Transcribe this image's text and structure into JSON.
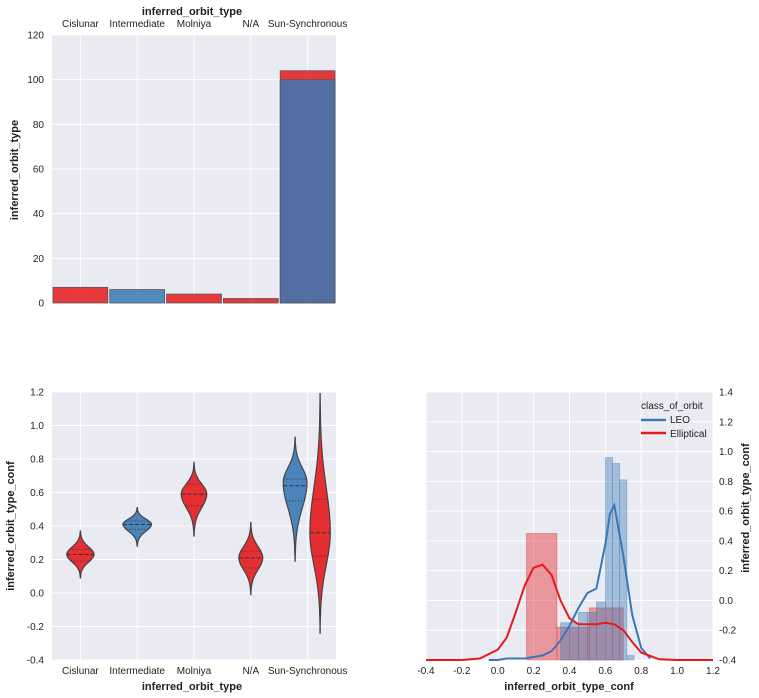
{
  "chart_data": [
    {
      "type": "bar",
      "title": "inferred_orbit_type",
      "ylabel": "inferred_orbit_type",
      "categories": [
        "Cislunar",
        "Intermediate",
        "Molniya",
        "N/A",
        "Sun-Synchronous"
      ],
      "ylim": [
        0,
        120
      ],
      "yticks": [
        "0",
        "20",
        "40",
        "60",
        "80",
        "100",
        "120"
      ],
      "series": [
        {
          "name": "LEO",
          "values": [
            0,
            6,
            0,
            0,
            100
          ]
        },
        {
          "name": "Elliptical",
          "values": [
            7,
            0,
            4,
            2,
            104
          ]
        }
      ]
    },
    {
      "type": "violin",
      "xlabel": "inferred_orbit_type",
      "ylabel": "inferred_orbit_type_conf",
      "categories": [
        "Cislunar",
        "Intermediate",
        "Molniya",
        "N/A",
        "Sun-Synchronous"
      ],
      "ylim": [
        -0.4,
        1.2
      ],
      "yticks": [
        "-0.4",
        "-0.2",
        "0.0",
        "0.2",
        "0.4",
        "0.6",
        "0.8",
        "1.0",
        "1.2"
      ],
      "violins": [
        {
          "category": "Cislunar",
          "series": "Elliptical",
          "min": 0.09,
          "max": 0.37,
          "q1": 0.19,
          "median": 0.23,
          "q3": 0.26,
          "peak": 0.23,
          "width": 0.48
        },
        {
          "category": "Intermediate",
          "series": "LEO",
          "min": 0.28,
          "max": 0.51,
          "q1": 0.38,
          "median": 0.41,
          "q3": 0.43,
          "peak": 0.41,
          "width": 0.5
        },
        {
          "category": "Molniya",
          "series": "Elliptical",
          "min": 0.34,
          "max": 0.78,
          "q1": 0.52,
          "median": 0.59,
          "q3": 0.65,
          "peak": 0.59,
          "width": 0.45
        },
        {
          "category": "N/A",
          "series": "Elliptical",
          "min": -0.01,
          "max": 0.42,
          "q1": 0.15,
          "median": 0.21,
          "q3": 0.25,
          "peak": 0.21,
          "width": 0.42
        },
        {
          "category": "Sun-Synchronous",
          "series": "LEO",
          "min": 0.19,
          "max": 0.93,
          "q1": 0.55,
          "median": 0.64,
          "q3": 0.68,
          "peak": 0.66,
          "width": 0.42,
          "side": -0.22
        },
        {
          "category": "Sun-Synchronous",
          "series": "Elliptical",
          "min": -0.24,
          "max": 1.19,
          "q1": 0.22,
          "median": 0.36,
          "q3": 0.56,
          "peak": 0.36,
          "width": 0.36,
          "side": 0.22
        }
      ]
    },
    {
      "type": "histogram+kde",
      "xlabel": "inferred_orbit_type_conf",
      "ylabel": "inferred_orbit_type_conf",
      "xlim": [
        -0.4,
        1.2
      ],
      "xticks": [
        "-0.4",
        "-0.2",
        "0.0",
        "0.2",
        "0.4",
        "0.6",
        "0.8",
        "1.0",
        "1.2"
      ],
      "ylim": [
        -0.4,
        1.4
      ],
      "yticks": [
        "-0.4",
        "-0.2",
        "0.0",
        "0.2",
        "0.4",
        "0.6",
        "0.8",
        "1.0",
        "1.2",
        "1.4"
      ],
      "legend_title": "class_of_orbit",
      "legend_position": "top-right",
      "series": [
        {
          "name": "LEO",
          "color": "#3a78b5",
          "bins": [
            {
              "x0": 0.35,
              "x1": 0.4,
              "value": -0.15
            },
            {
              "x0": 0.4,
              "x1": 0.45,
              "value": -0.15
            },
            {
              "x0": 0.45,
              "x1": 0.5,
              "value": -0.08
            },
            {
              "x0": 0.5,
              "x1": 0.55,
              "value": -0.08
            },
            {
              "x0": 0.55,
              "x1": 0.6,
              "value": -0.01
            },
            {
              "x0": 0.6,
              "x1": 0.64,
              "value": 0.96
            },
            {
              "x0": 0.64,
              "x1": 0.68,
              "value": 0.92
            },
            {
              "x0": 0.68,
              "x1": 0.72,
              "value": 0.81
            },
            {
              "x0": 0.72,
              "x1": 0.76,
              "value": -0.37
            }
          ],
          "kde": {
            "x": [
              -0.05,
              0.0,
              0.05,
              0.1,
              0.15,
              0.2,
              0.25,
              0.3,
              0.35,
              0.4,
              0.45,
              0.5,
              0.55,
              0.6,
              0.625,
              0.65,
              0.7,
              0.725,
              0.75,
              0.8,
              0.85
            ],
            "y": [
              -0.4,
              -0.4,
              -0.39,
              -0.39,
              -0.39,
              -0.38,
              -0.37,
              -0.34,
              -0.27,
              -0.17,
              -0.05,
              0.05,
              0.08,
              0.38,
              0.58,
              0.64,
              0.3,
              0.1,
              -0.1,
              -0.32,
              -0.39
            ]
          }
        },
        {
          "name": "Elliptical",
          "color": "#e41a1c",
          "bins": [
            {
              "x0": 0.16,
              "x1": 0.33,
              "value": 0.45
            },
            {
              "x0": 0.33,
              "x1": 0.51,
              "value": -0.18
            },
            {
              "x0": 0.51,
              "x1": 0.7,
              "value": -0.05
            }
          ],
          "kde": {
            "x": [
              -0.2,
              -0.1,
              0.0,
              0.05,
              0.1,
              0.15,
              0.2,
              0.25,
              0.3,
              0.35,
              0.4,
              0.45,
              0.5,
              0.55,
              0.6,
              0.65,
              0.7,
              0.75,
              0.8,
              0.9,
              1.0,
              1.2
            ],
            "y": [
              -0.4,
              -0.39,
              -0.33,
              -0.25,
              -0.08,
              0.1,
              0.22,
              0.24,
              0.17,
              0.0,
              -0.12,
              -0.16,
              -0.16,
              -0.16,
              -0.15,
              -0.16,
              -0.2,
              -0.28,
              -0.35,
              -0.395,
              -0.4,
              -0.4
            ]
          }
        }
      ]
    }
  ],
  "colors": {
    "LEO": "#3a78b5",
    "Elliptical": "#e41a1c",
    "background": "#eaeaf2",
    "grid": "#ffffff"
  }
}
